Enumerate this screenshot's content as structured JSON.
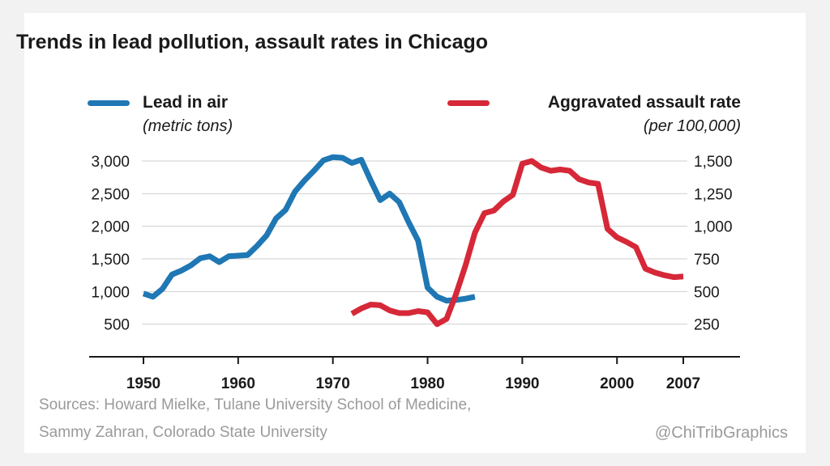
{
  "chart_data": {
    "type": "line",
    "title": "Trends in lead pollution, assault rates in Chicago",
    "legend": [
      {
        "label": "Lead in air",
        "unit": "(metric tons)",
        "color": "#1f77b4",
        "placement": "top-left"
      },
      {
        "label": "Aggravated assault rate",
        "unit": "(per 100,000)",
        "color": "#d62838",
        "placement": "top-right"
      }
    ],
    "x_ticks": [
      "1950",
      "1960",
      "1970",
      "1980",
      "1990",
      "2000",
      "2007"
    ],
    "y_left_ticks": [
      "3,000",
      "2,500",
      "2,000",
      "1,500",
      "1,000",
      "500"
    ],
    "y_right_ticks": [
      "1,500",
      "1,250",
      "1,000",
      "750",
      "500",
      "250"
    ],
    "xlim": [
      1950,
      2007
    ],
    "ylim_left": [
      0,
      3000
    ],
    "ylim_right": [
      0,
      1500
    ],
    "grid": true,
    "series": [
      {
        "name": "Lead in air",
        "axis": "left",
        "color": "#1f77b4",
        "x": [
          1950,
          1951,
          1952,
          1953,
          1954,
          1955,
          1956,
          1957,
          1958,
          1959,
          1960,
          1961,
          1962,
          1963,
          1964,
          1965,
          1966,
          1967,
          1968,
          1969,
          1970,
          1971,
          1972,
          1973,
          1974,
          1975,
          1976,
          1977,
          1978,
          1979,
          1980,
          1981,
          1982,
          1983,
          1984,
          1985
        ],
        "values": [
          970,
          920,
          1040,
          1260,
          1320,
          1400,
          1510,
          1540,
          1450,
          1540,
          1550,
          1560,
          1700,
          1860,
          2120,
          2250,
          2530,
          2700,
          2850,
          3010,
          3060,
          3050,
          2970,
          3020,
          2700,
          2400,
          2500,
          2370,
          2060,
          1780,
          1060,
          920,
          860,
          870,
          890,
          920
        ]
      },
      {
        "name": "Aggravated assault rate",
        "axis": "right",
        "color": "#d62838",
        "x": [
          1972,
          1973,
          1974,
          1975,
          1976,
          1977,
          1978,
          1979,
          1980,
          1981,
          1982,
          1983,
          1984,
          1985,
          1986,
          1987,
          1988,
          1989,
          1990,
          1991,
          1992,
          1993,
          1994,
          1995,
          1996,
          1997,
          1998,
          1999,
          2000,
          2001,
          2002,
          2003,
          2004,
          2005,
          2006,
          2007
        ],
        "values": [
          330,
          370,
          400,
          395,
          355,
          335,
          335,
          350,
          340,
          250,
          290,
          480,
          700,
          950,
          1100,
          1120,
          1190,
          1240,
          1480,
          1500,
          1450,
          1425,
          1435,
          1425,
          1360,
          1335,
          1325,
          980,
          915,
          880,
          840,
          675,
          645,
          625,
          610,
          615
        ]
      }
    ],
    "source_lines": [
      "Sources: Howard Mielke, Tulane University School of Medicine,",
      "Sammy Zahran, Colorado State University"
    ],
    "credit": "@ChiTribGraphics"
  }
}
